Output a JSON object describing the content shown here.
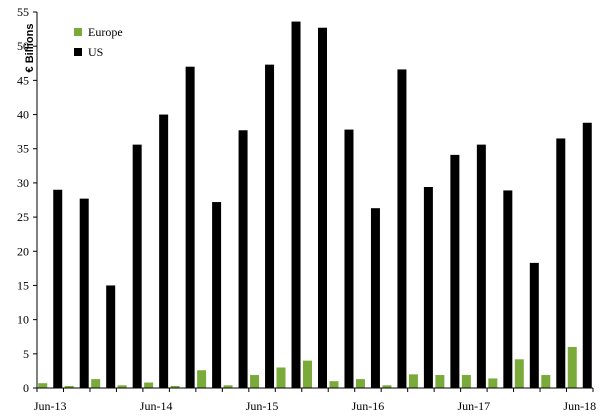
{
  "chart_data": {
    "type": "bar",
    "title": "",
    "xlabel": "",
    "ylabel": "€ Billions",
    "ylim": [
      0,
      55
    ],
    "yticks": [
      0,
      5,
      10,
      15,
      20,
      25,
      30,
      35,
      40,
      45,
      50,
      55
    ],
    "grid": false,
    "legend_position": "top-left",
    "categories": [
      "Jun-13",
      "Sep-13",
      "Dec-13",
      "Mar-14",
      "Jun-14",
      "Sep-14",
      "Dec-14",
      "Mar-15",
      "Jun-15",
      "Sep-15",
      "Dec-15",
      "Mar-16",
      "Jun-16",
      "Sep-16",
      "Dec-16",
      "Mar-17",
      "Jun-17",
      "Sep-17",
      "Dec-17",
      "Mar-18",
      "Jun-18"
    ],
    "x_tick_labels": [
      "Jun-13",
      "Jun-14",
      "Jun-15",
      "Jun-16",
      "Jun-17",
      "Jun-18"
    ],
    "series": [
      {
        "name": "Europe",
        "color": "#7aab3a",
        "values": [
          0.7,
          0.3,
          1.3,
          0.4,
          0.8,
          0.3,
          2.6,
          0.4,
          1.9,
          3.0,
          4.0,
          1.0,
          1.3,
          0.4,
          2.0,
          1.9,
          1.9,
          1.4,
          4.2,
          1.9,
          6.0
        ]
      },
      {
        "name": "US",
        "color": "#000000",
        "values": [
          29.0,
          27.7,
          15.0,
          35.6,
          40.0,
          47.0,
          27.2,
          37.7,
          47.3,
          53.6,
          52.7,
          37.8,
          26.3,
          46.6,
          29.4,
          34.1,
          35.6,
          28.9,
          18.3,
          36.5,
          38.8
        ]
      }
    ]
  }
}
